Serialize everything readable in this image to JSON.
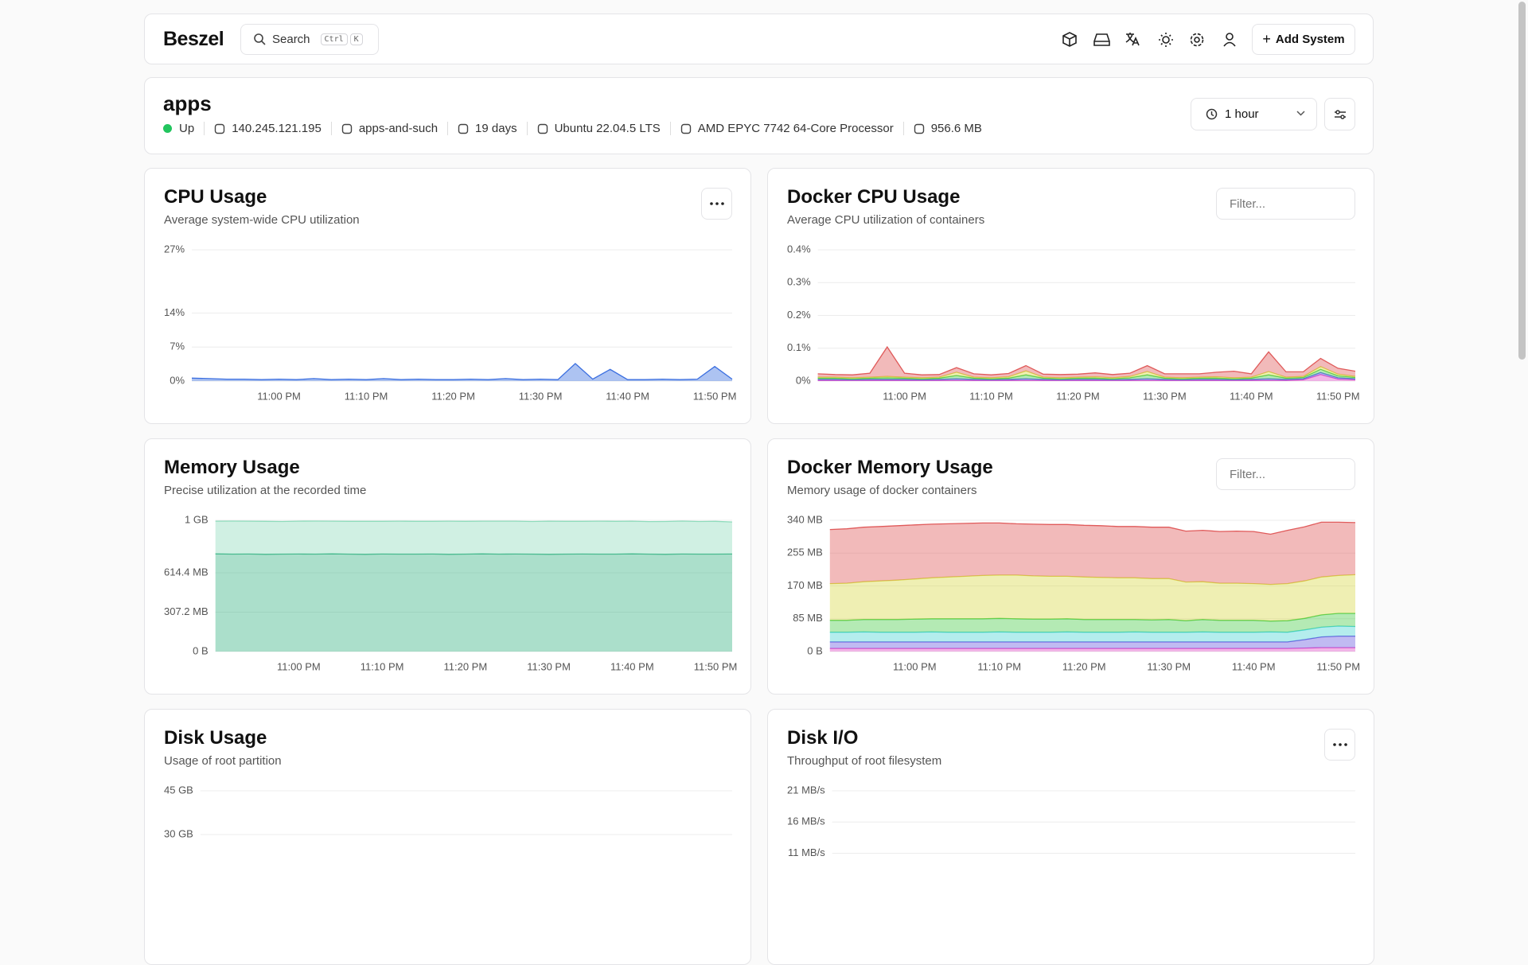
{
  "header": {
    "brand": "Beszel",
    "search": "Search",
    "shortcut": [
      "Ctrl",
      "K"
    ],
    "add_button": "Add System"
  },
  "system": {
    "name": "apps",
    "status": "Up",
    "details": [
      "140.245.121.195",
      "apps-and-such",
      "19 days",
      "Ubuntu 22.04.5 LTS",
      "AMD EPYC 7742 64-Core Processor",
      "956.6 MB"
    ],
    "time_range": "1 hour"
  },
  "panels": [
    {
      "type": "area",
      "title": "CPU Usage",
      "subtitle": "Average system-wide CPU utilization",
      "menu": true,
      "stacked": true,
      "categories": [
        null,
        null,
        null,
        null,
        null,
        "11:00 PM",
        null,
        null,
        null,
        null,
        "11:10 PM",
        null,
        null,
        null,
        null,
        "11:20 PM",
        null,
        null,
        null,
        null,
        "11:30 PM",
        null,
        null,
        null,
        null,
        "11:40 PM",
        null,
        null,
        null,
        null,
        "11:50 PM",
        null
      ],
      "ylim": [
        0,
        27
      ],
      "yticks": [
        {
          "value": 0,
          "label": "0%"
        },
        {
          "value": 7,
          "label": "7%"
        },
        {
          "value": 14,
          "label": "14%"
        },
        {
          "value": 27,
          "label": "27%"
        }
      ],
      "series": [
        {
          "color": "#3b6fe0",
          "values": [
            0.6,
            0.5,
            0.4,
            0.4,
            0.3,
            0.4,
            0.3,
            0.5,
            0.3,
            0.4,
            0.3,
            0.5,
            0.3,
            0.4,
            0.3,
            0.3,
            0.4,
            0.3,
            0.5,
            0.3,
            0.4,
            0.3,
            3.6,
            0.4,
            2.4,
            0.3,
            0.3,
            0.4,
            0.3,
            0.4,
            3.0,
            0.4
          ]
        }
      ]
    },
    {
      "type": "area",
      "title": "Docker CPU Usage",
      "subtitle": "Average CPU utilization of containers",
      "filter": "Filter...",
      "stacked": true,
      "categories": [
        null,
        null,
        null,
        null,
        null,
        "11:00 PM",
        null,
        null,
        null,
        null,
        "11:10 PM",
        null,
        null,
        null,
        null,
        "11:20 PM",
        null,
        null,
        null,
        null,
        "11:30 PM",
        null,
        null,
        null,
        null,
        "11:40 PM",
        null,
        null,
        null,
        null,
        "11:50 PM",
        null
      ],
      "ylim": [
        0,
        0.4
      ],
      "yticks": [
        {
          "value": 0,
          "label": "0%"
        },
        {
          "value": 0.1,
          "label": "0.1%"
        },
        {
          "value": 0.2,
          "label": "0.2%"
        },
        {
          "value": 0.3,
          "label": "0.3%"
        },
        {
          "value": 0.4,
          "label": "0.4%"
        }
      ],
      "series": [
        {
          "color": "#e050c8",
          "values": [
            0.002,
            0.002,
            0.002,
            0.002,
            0.002,
            0.002,
            0.002,
            0.002,
            0.002,
            0.002,
            0.002,
            0.002,
            0.002,
            0.002,
            0.002,
            0.002,
            0.002,
            0.002,
            0.002,
            0.002,
            0.002,
            0.002,
            0.002,
            0.002,
            0.002,
            0.002,
            0.002,
            0.002,
            0.004,
            0.02,
            0.006,
            0.004
          ]
        },
        {
          "color": "#5a6ae0",
          "values": [
            0.003,
            0.003,
            0.002,
            0.003,
            0.003,
            0.003,
            0.002,
            0.003,
            0.005,
            0.003,
            0.002,
            0.003,
            0.005,
            0.003,
            0.002,
            0.003,
            0.003,
            0.002,
            0.003,
            0.005,
            0.003,
            0.002,
            0.003,
            0.003,
            0.002,
            0.003,
            0.005,
            0.003,
            0.003,
            0.006,
            0.004,
            0.003
          ]
        },
        {
          "color": "#4ccc4c",
          "values": [
            0.004,
            0.004,
            0.003,
            0.004,
            0.005,
            0.004,
            0.003,
            0.004,
            0.01,
            0.004,
            0.003,
            0.004,
            0.012,
            0.004,
            0.003,
            0.004,
            0.004,
            0.003,
            0.005,
            0.012,
            0.004,
            0.003,
            0.004,
            0.004,
            0.003,
            0.004,
            0.012,
            0.004,
            0.004,
            0.01,
            0.006,
            0.004
          ]
        },
        {
          "color": "#d8d84a",
          "values": [
            0.003,
            0.003,
            0.003,
            0.003,
            0.004,
            0.003,
            0.003,
            0.003,
            0.01,
            0.003,
            0.003,
            0.004,
            0.012,
            0.003,
            0.003,
            0.003,
            0.004,
            0.003,
            0.004,
            0.01,
            0.003,
            0.003,
            0.003,
            0.004,
            0.003,
            0.003,
            0.01,
            0.003,
            0.003,
            0.008,
            0.005,
            0.003
          ]
        },
        {
          "color": "#e05a5a",
          "values": [
            0.01,
            0.008,
            0.009,
            0.012,
            0.09,
            0.012,
            0.009,
            0.008,
            0.014,
            0.01,
            0.009,
            0.01,
            0.016,
            0.009,
            0.01,
            0.009,
            0.012,
            0.01,
            0.01,
            0.018,
            0.01,
            0.012,
            0.01,
            0.014,
            0.02,
            0.01,
            0.06,
            0.016,
            0.014,
            0.025,
            0.018,
            0.016
          ]
        }
      ]
    },
    {
      "type": "area",
      "title": "Memory Usage",
      "subtitle": "Precise utilization at the recorded time",
      "stacked": true,
      "categories": [
        null,
        null,
        null,
        null,
        null,
        "11:00 PM",
        null,
        null,
        null,
        null,
        "11:10 PM",
        null,
        null,
        null,
        null,
        "11:20 PM",
        null,
        null,
        null,
        null,
        "11:30 PM",
        null,
        null,
        null,
        null,
        "11:40 PM",
        null,
        null,
        null,
        null,
        "11:50 PM",
        null
      ],
      "ylim": [
        0,
        1024
      ],
      "yticks": [
        {
          "value": 0,
          "label": "0 B"
        },
        {
          "value": 307.2,
          "label": "307.2 MB"
        },
        {
          "value": 614.4,
          "label": "614.4 MB"
        },
        {
          "value": 1024,
          "label": "1 GB"
        }
      ],
      "series": [
        {
          "color": "#36b283",
          "values": [
            762,
            760,
            761,
            759,
            760,
            761,
            760,
            762,
            760,
            759,
            761,
            760,
            760,
            761,
            759,
            760,
            762,
            760,
            761,
            760,
            759,
            760,
            761,
            760,
            760,
            762,
            760,
            759,
            761,
            760,
            760,
            761
          ]
        },
        {
          "color": "#8fdcbc",
          "values": [
            255,
            258,
            256,
            257,
            255,
            256,
            258,
            255,
            256,
            257,
            255,
            257,
            256,
            255,
            258,
            256,
            255,
            257,
            256,
            255,
            258,
            256,
            255,
            257,
            256,
            255,
            254,
            256,
            257,
            255,
            256,
            250
          ]
        }
      ]
    },
    {
      "type": "area",
      "title": "Docker Memory Usage",
      "subtitle": "Memory usage of docker containers",
      "filter": "Filter...",
      "stacked": true,
      "categories": [
        null,
        null,
        null,
        null,
        null,
        "11:00 PM",
        null,
        null,
        null,
        null,
        "11:10 PM",
        null,
        null,
        null,
        null,
        "11:20 PM",
        null,
        null,
        null,
        null,
        "11:30 PM",
        null,
        null,
        null,
        null,
        "11:40 PM",
        null,
        null,
        null,
        null,
        "11:50 PM",
        null
      ],
      "ylim": [
        0,
        340
      ],
      "yticks": [
        {
          "value": 0,
          "label": "0 B"
        },
        {
          "value": 85,
          "label": "85 MB"
        },
        {
          "value": 170,
          "label": "170 MB"
        },
        {
          "value": 255,
          "label": "255 MB"
        },
        {
          "value": 340,
          "label": "340 MB"
        }
      ],
      "series": [
        {
          "color": "#e050c8",
          "values": [
            8,
            8,
            8,
            8,
            8,
            8,
            8,
            8,
            8,
            8,
            8,
            8,
            8,
            8,
            8,
            8,
            8,
            8,
            8,
            8,
            8,
            8,
            8,
            8,
            8,
            8,
            8,
            8,
            9,
            10,
            10,
            10
          ]
        },
        {
          "color": "#6a5ae0",
          "values": [
            17,
            17,
            17,
            17,
            17,
            17,
            17,
            17,
            17,
            17,
            17,
            17,
            17,
            17,
            17,
            17,
            17,
            17,
            17,
            17,
            17,
            17,
            17,
            17,
            17,
            17,
            17,
            17,
            22,
            28,
            30,
            30
          ]
        },
        {
          "color": "#4cd4d4",
          "values": [
            25,
            25,
            26,
            25,
            25,
            25,
            26,
            25,
            25,
            25,
            26,
            25,
            25,
            25,
            26,
            25,
            25,
            25,
            26,
            25,
            25,
            25,
            26,
            25,
            25,
            25,
            26,
            25,
            25,
            25,
            26,
            25
          ]
        },
        {
          "color": "#4ccc4c",
          "values": [
            31,
            31,
            32,
            33,
            33,
            34,
            34,
            35,
            35,
            35,
            35,
            35,
            34,
            34,
            34,
            33,
            33,
            33,
            32,
            32,
            33,
            30,
            32,
            31,
            31,
            31,
            28,
            30,
            30,
            32,
            33,
            34
          ]
        },
        {
          "color": "#d8d84a",
          "values": [
            95,
            96,
            98,
            100,
            102,
            104,
            106,
            108,
            110,
            112,
            112,
            113,
            112,
            111,
            110,
            110,
            109,
            108,
            108,
            107,
            106,
            100,
            98,
            96,
            96,
            95,
            95,
            96,
            97,
            98,
            98,
            100
          ]
        },
        {
          "color": "#e05a5a",
          "values": [
            140,
            141,
            141,
            141,
            141,
            140,
            139,
            138,
            137,
            136,
            135,
            133,
            134,
            134,
            134,
            134,
            134,
            133,
            133,
            133,
            133,
            132,
            133,
            134,
            135,
            135,
            130,
            138,
            140,
            142,
            138,
            135
          ]
        }
      ]
    },
    {
      "type": "area",
      "title": "Disk Usage",
      "subtitle": "Usage of root partition",
      "ylim": [
        0,
        45
      ],
      "yticks": [
        {
          "value": 30,
          "label": "30 GB"
        },
        {
          "value": 45,
          "label": "45 GB"
        }
      ]
    },
    {
      "type": "area",
      "title": "Disk I/O",
      "subtitle": "Throughput of root filesystem",
      "menu": true,
      "ylim": [
        0,
        21
      ],
      "yticks": [
        {
          "value": 11,
          "label": "11 MB/s"
        },
        {
          "value": 16,
          "label": "16 MB/s"
        },
        {
          "value": 21,
          "label": "21 MB/s"
        }
      ]
    }
  ]
}
